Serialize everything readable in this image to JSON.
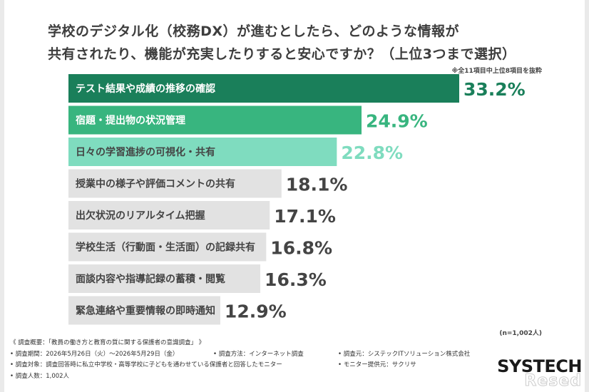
{
  "title_line1": "学校のデジタル化（校務DX）が進むとしたら、どのような情報が",
  "title_line2": "共有されたり、機能が充実したりすると安心ですか？（上位3つまで選択）",
  "note": "※全11項目中上位8項目を抜粋",
  "n_note": "(n=1,002人)",
  "colors": {
    "rank1": "#1a7f5a",
    "rank2": "#38b57f",
    "rank3": "#7fdcbf",
    "other": "#e2e2e2",
    "text_dark": "#444444"
  },
  "chart_data": {
    "type": "bar",
    "orientation": "horizontal",
    "categories": [
      "テスト結果や成績の推移の確認",
      "宿題・提出物の状況管理",
      "日々の学習進捗の可視化・共有",
      "授業中の様子や評価コメントの共有",
      "出欠状況のリアルタイム把握",
      "学校生活（行動面・生活面）の記録共有",
      "面談内容や指導記録の蓄積・閲覧",
      "緊急連絡や重要情報の即時通知"
    ],
    "values": [
      33.2,
      24.9,
      22.8,
      18.1,
      17.1,
      16.8,
      16.3,
      12.9
    ],
    "value_labels": [
      "33.2%",
      "24.9%",
      "22.8%",
      "18.1%",
      "17.1%",
      "16.8%",
      "16.3%",
      "12.9%"
    ],
    "xlim": [
      0,
      33.2
    ],
    "unit": "%"
  },
  "footer": {
    "line1": "《 調査概要：「教員の働き方と教育の質に関する保護者の意識調査」 》",
    "period": "• 調査期間：2026年5月26日（火）～2026年5月29日（金）",
    "method": "• 調査方法：インターネット調査",
    "organizer": "• 調査元：システックITソリューション株式会社",
    "target": "• 調査対象：調査回答時に私立中学校・高等学校に子どもを通わせている保護者と回答したモニター",
    "provider": "• モニター提供元：サクリサ",
    "count": "• 調査人数：1,002人"
  },
  "logo": "SYSTECH",
  "watermark": "Resed"
}
